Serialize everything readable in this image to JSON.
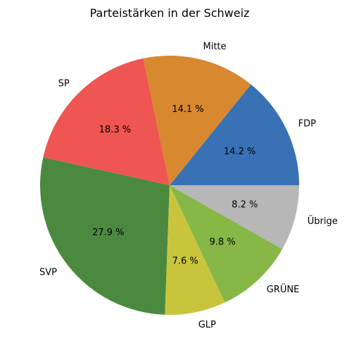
{
  "chart_data": {
    "type": "pie",
    "title": "Parteistärken in der Schweiz",
    "start_angle_deg": 0,
    "direction": "counterclockwise",
    "slices": [
      {
        "label": "FDP",
        "value": 14.2,
        "pct_label": "14.2 %",
        "color": "#3872b4"
      },
      {
        "label": "Mitte",
        "value": 14.1,
        "pct_label": "14.1 %",
        "color": "#d8882e"
      },
      {
        "label": "SP",
        "value": 18.3,
        "pct_label": "18.3 %",
        "color": "#ef5651"
      },
      {
        "label": "SVP",
        "value": 27.9,
        "pct_label": "27.9 %",
        "color": "#4b8a3e"
      },
      {
        "label": "GLP",
        "value": 7.6,
        "pct_label": "7.6 %",
        "color": "#c8c53d"
      },
      {
        "label": "GRÜNE",
        "value": 9.8,
        "pct_label": "9.8 %",
        "color": "#86b747"
      },
      {
        "label": "Übrige",
        "value": 8.2,
        "pct_label": "8.2 %",
        "color": "#b7b7b7"
      }
    ]
  }
}
